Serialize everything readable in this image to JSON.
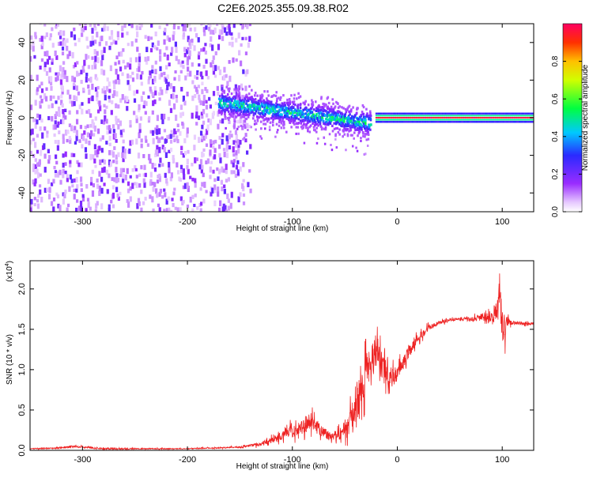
{
  "title": "C2E6.2025.355.09.38.R02",
  "colors": {
    "snr_line": "#ee2222",
    "axes": "#000000"
  },
  "chart_data": [
    {
      "type": "heatmap",
      "xlabel": "Height of straight line (km)",
      "ylabel": "Frequency (Hz)",
      "xlim": [
        -350,
        130
      ],
      "ylim": [
        -50,
        50
      ],
      "xticks": [
        -300,
        -200,
        -100,
        0,
        100
      ],
      "yticks": [
        -40,
        -20,
        0,
        20,
        40
      ],
      "colorbar": {
        "label": "Normalized spectral amplitude",
        "range": [
          0,
          1
        ],
        "ticks": [
          "0.0",
          "0.2",
          "0.4",
          "0.6",
          "0.8"
        ],
        "colormap": "rainbow (white-violet-blue-cyan-green-yellow-red)"
      },
      "features": [
        {
          "segment": "noise",
          "x_range": [
            -350,
            -140
          ],
          "freq_range": [
            -50,
            50
          ],
          "amplitude": "low (0.1-0.25)"
        },
        {
          "segment": "broadband echo",
          "x_range": [
            -170,
            -25
          ],
          "center_freq_start": 8,
          "center_freq_end": -3,
          "amplitude": "0.2-0.5"
        },
        {
          "segment": "steady line",
          "x_range": [
            -20,
            130
          ],
          "center_freq": 0,
          "amplitude": "~1.0"
        }
      ]
    },
    {
      "type": "line",
      "xlabel": "Height of straight line (km)",
      "ylabel": "SNR (10 * v/v)",
      "y_scale_label": "(x10",
      "y_scale_exp": "4",
      "y_multiplier": 10000,
      "xlim": [
        -350,
        130
      ],
      "ylim": [
        0,
        2.35
      ],
      "xticks": [
        -300,
        -200,
        -100,
        0,
        100
      ],
      "yticks": [
        "0.0",
        "0.5",
        "1.0",
        "1.5",
        "2.0"
      ],
      "series": [
        {
          "x": [
            -350,
            -320,
            -310,
            -280,
            -200,
            -150,
            -130,
            -115,
            -105,
            -95,
            -85,
            -75,
            -65,
            -55,
            -48,
            -42,
            -35,
            -30,
            -25,
            -20,
            -15,
            -10,
            -5,
            0,
            10,
            20,
            30,
            40,
            50,
            60,
            70,
            80,
            90,
            95,
            98,
            100,
            102,
            105,
            110,
            120,
            130
          ],
          "y": [
            0.02,
            0.03,
            0.05,
            0.02,
            0.02,
            0.04,
            0.08,
            0.15,
            0.22,
            0.25,
            0.35,
            0.28,
            0.18,
            0.2,
            0.3,
            0.45,
            0.7,
            0.95,
            1.15,
            1.25,
            1.05,
            0.95,
            0.9,
            0.95,
            1.2,
            1.4,
            1.52,
            1.58,
            1.62,
            1.63,
            1.62,
            1.65,
            1.65,
            1.7,
            1.9,
            1.55,
            1.45,
            1.6,
            1.58,
            1.57,
            1.57
          ],
          "noise": [
            0.01,
            0.02,
            0.03,
            0.02,
            0.01,
            0.02,
            0.05,
            0.1,
            0.15,
            0.18,
            0.22,
            0.2,
            0.12,
            0.15,
            0.3,
            0.4,
            0.45,
            0.5,
            0.5,
            0.45,
            0.4,
            0.35,
            0.25,
            0.2,
            0.18,
            0.12,
            0.08,
            0.05,
            0.04,
            0.04,
            0.06,
            0.1,
            0.2,
            0.35,
            0.45,
            0.5,
            0.35,
            0.15,
            0.05,
            0.04,
            0.04
          ]
        }
      ]
    }
  ]
}
